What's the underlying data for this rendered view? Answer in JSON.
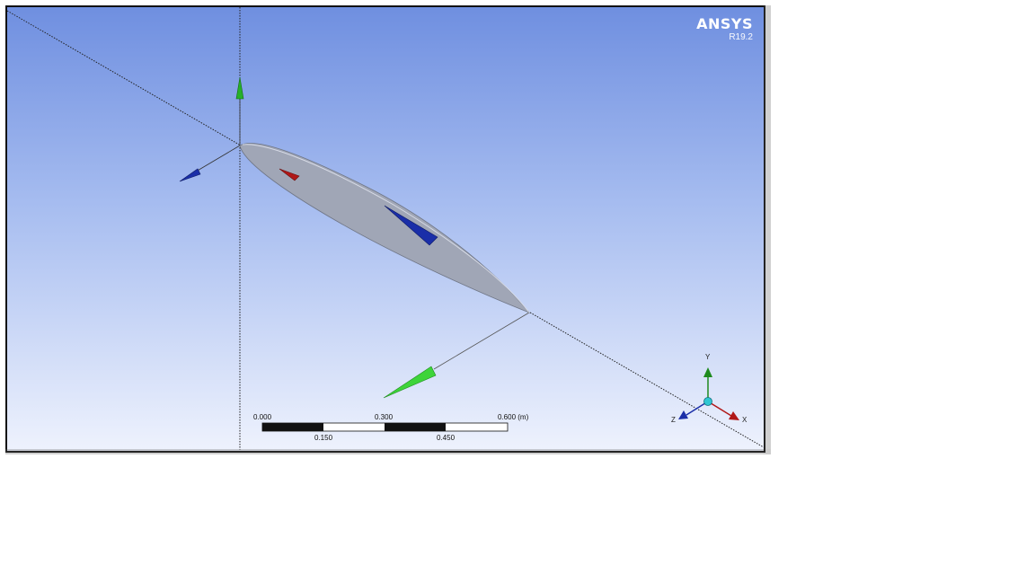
{
  "logo": {
    "brand": "ANSYS",
    "version": "R19.2"
  },
  "scale_bar": {
    "top_labels": [
      "0.000",
      "0.300",
      "0.600 (m)"
    ],
    "bottom_labels": [
      "0.150",
      "0.450"
    ]
  },
  "triad": {
    "x": "X",
    "y": "Y",
    "z": "Z"
  },
  "colors": {
    "x_axis": "#b01818",
    "y_axis": "#1e8a1e",
    "z_axis": "#1a2ea8",
    "airfoil": "#a0a6b6",
    "bg_top": "#6f8fe0",
    "bg_bottom": "#eef2fd"
  }
}
